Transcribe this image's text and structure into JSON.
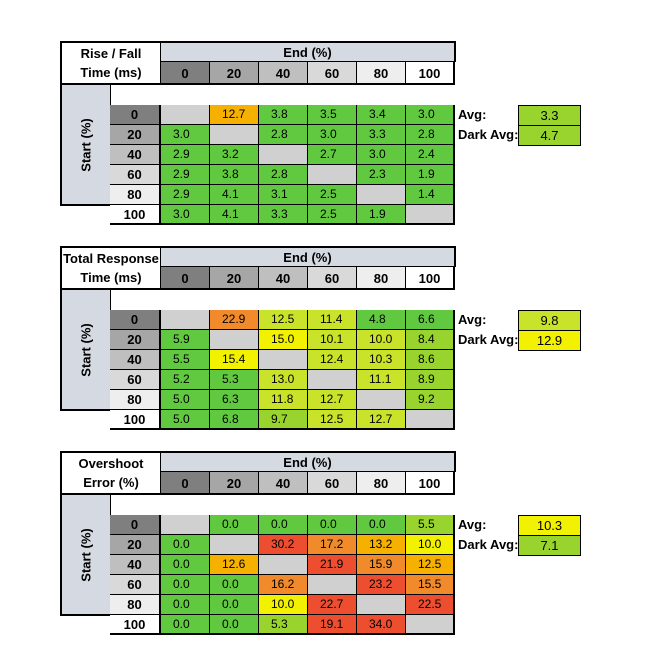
{
  "colors": {
    "gray_diag": "#d0d0d0",
    "green": "#61c940",
    "lightgreen": "#99d42e",
    "yellowgreen": "#c8e32a",
    "yellow": "#f2f200",
    "amber": "#f5b000",
    "orange": "#f08a2a",
    "red": "#ee4e30",
    "hdr_0": "#7f7f7f",
    "hdr_20": "#a6a6a6",
    "hdr_40": "#bfbfbf",
    "hdr_60": "#d9d9d9",
    "hdr_80": "#eeeeee",
    "hdr_100": "#ffffff"
  },
  "levels": [
    "0",
    "20",
    "40",
    "60",
    "80",
    "100"
  ],
  "end_label": "End (%)",
  "start_label": "Start (%)",
  "avg_label": "Avg:",
  "dark_avg_label": "Dark Avg:",
  "tables": [
    {
      "title_line1": "Rise / Fall",
      "title_line2": "Time (ms)",
      "avg": "3.3",
      "dark_avg": "4.7",
      "avg_color": "lightgreen",
      "dark_avg_color": "lightgreen",
      "rows": [
        [
          [
            "",
            "gray_diag"
          ],
          [
            "12.7",
            "amber"
          ],
          [
            "3.8",
            "green"
          ],
          [
            "3.5",
            "green"
          ],
          [
            "3.4",
            "green"
          ],
          [
            "3.0",
            "green"
          ]
        ],
        [
          [
            "3.0",
            "green"
          ],
          [
            "",
            "gray_diag"
          ],
          [
            "2.8",
            "green"
          ],
          [
            "3.0",
            "green"
          ],
          [
            "3.3",
            "green"
          ],
          [
            "2.8",
            "green"
          ]
        ],
        [
          [
            "2.9",
            "green"
          ],
          [
            "3.2",
            "green"
          ],
          [
            "",
            "gray_diag"
          ],
          [
            "2.7",
            "green"
          ],
          [
            "3.0",
            "green"
          ],
          [
            "2.4",
            "green"
          ]
        ],
        [
          [
            "2.9",
            "green"
          ],
          [
            "3.8",
            "green"
          ],
          [
            "2.8",
            "green"
          ],
          [
            "",
            "gray_diag"
          ],
          [
            "2.3",
            "green"
          ],
          [
            "1.9",
            "green"
          ]
        ],
        [
          [
            "2.9",
            "green"
          ],
          [
            "4.1",
            "green"
          ],
          [
            "3.1",
            "green"
          ],
          [
            "2.5",
            "green"
          ],
          [
            "",
            "gray_diag"
          ],
          [
            "1.4",
            "green"
          ]
        ],
        [
          [
            "3.0",
            "green"
          ],
          [
            "4.1",
            "green"
          ],
          [
            "3.3",
            "green"
          ],
          [
            "2.5",
            "green"
          ],
          [
            "1.9",
            "green"
          ],
          [
            "",
            "gray_diag"
          ]
        ]
      ]
    },
    {
      "title_line1": "Total Response",
      "title_line2": "Time (ms)",
      "avg": "9.8",
      "dark_avg": "12.9",
      "avg_color": "yellowgreen",
      "dark_avg_color": "yellow",
      "rows": [
        [
          [
            "",
            "gray_diag"
          ],
          [
            "22.9",
            "orange"
          ],
          [
            "12.5",
            "yellowgreen"
          ],
          [
            "11.4",
            "yellowgreen"
          ],
          [
            "4.8",
            "green"
          ],
          [
            "6.6",
            "green"
          ]
        ],
        [
          [
            "5.9",
            "green"
          ],
          [
            "",
            "gray_diag"
          ],
          [
            "15.0",
            "yellow"
          ],
          [
            "10.1",
            "yellowgreen"
          ],
          [
            "10.0",
            "yellowgreen"
          ],
          [
            "8.4",
            "lightgreen"
          ]
        ],
        [
          [
            "5.5",
            "green"
          ],
          [
            "15.4",
            "yellow"
          ],
          [
            "",
            "gray_diag"
          ],
          [
            "12.4",
            "yellowgreen"
          ],
          [
            "10.3",
            "yellowgreen"
          ],
          [
            "8.6",
            "lightgreen"
          ]
        ],
        [
          [
            "5.2",
            "green"
          ],
          [
            "5.3",
            "green"
          ],
          [
            "13.0",
            "yellowgreen"
          ],
          [
            "",
            "gray_diag"
          ],
          [
            "11.1",
            "yellowgreen"
          ],
          [
            "8.9",
            "lightgreen"
          ]
        ],
        [
          [
            "5.0",
            "green"
          ],
          [
            "6.3",
            "green"
          ],
          [
            "11.8",
            "yellowgreen"
          ],
          [
            "12.7",
            "yellowgreen"
          ],
          [
            "",
            "gray_diag"
          ],
          [
            "9.2",
            "lightgreen"
          ]
        ],
        [
          [
            "5.0",
            "green"
          ],
          [
            "6.8",
            "green"
          ],
          [
            "9.7",
            "lightgreen"
          ],
          [
            "12.5",
            "yellowgreen"
          ],
          [
            "12.7",
            "yellowgreen"
          ],
          [
            "",
            "gray_diag"
          ]
        ]
      ]
    },
    {
      "title_line1": "Overshoot",
      "title_line2": "Error (%)",
      "avg": "10.3",
      "dark_avg": "7.1",
      "avg_color": "yellow",
      "dark_avg_color": "lightgreen",
      "rows": [
        [
          [
            "",
            "gray_diag"
          ],
          [
            "0.0",
            "green"
          ],
          [
            "0.0",
            "green"
          ],
          [
            "0.0",
            "green"
          ],
          [
            "0.0",
            "green"
          ],
          [
            "5.5",
            "lightgreen"
          ]
        ],
        [
          [
            "0.0",
            "green"
          ],
          [
            "",
            "gray_diag"
          ],
          [
            "30.2",
            "red"
          ],
          [
            "17.2",
            "orange"
          ],
          [
            "13.2",
            "amber"
          ],
          [
            "10.0",
            "yellow"
          ]
        ],
        [
          [
            "0.0",
            "green"
          ],
          [
            "12.6",
            "amber"
          ],
          [
            "",
            "gray_diag"
          ],
          [
            "21.9",
            "red"
          ],
          [
            "15.9",
            "orange"
          ],
          [
            "12.5",
            "amber"
          ]
        ],
        [
          [
            "0.0",
            "green"
          ],
          [
            "0.0",
            "green"
          ],
          [
            "16.2",
            "orange"
          ],
          [
            "",
            "gray_diag"
          ],
          [
            "23.2",
            "red"
          ],
          [
            "15.5",
            "orange"
          ]
        ],
        [
          [
            "0.0",
            "green"
          ],
          [
            "0.0",
            "green"
          ],
          [
            "10.0",
            "yellow"
          ],
          [
            "22.7",
            "red"
          ],
          [
            "",
            "gray_diag"
          ],
          [
            "22.5",
            "red"
          ]
        ],
        [
          [
            "0.0",
            "green"
          ],
          [
            "0.0",
            "green"
          ],
          [
            "5.3",
            "lightgreen"
          ],
          [
            "19.1",
            "red"
          ],
          [
            "34.0",
            "red"
          ],
          [
            "",
            "gray_diag"
          ]
        ]
      ]
    }
  ]
}
